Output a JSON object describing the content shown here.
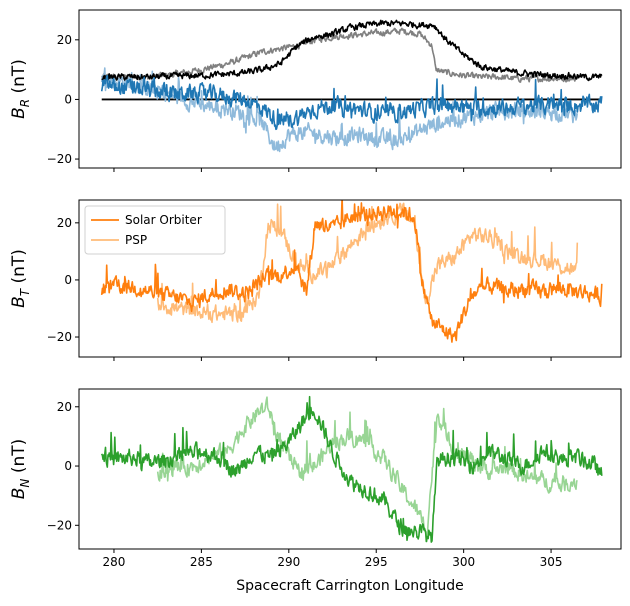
{
  "chart_data": [
    {
      "type": "line",
      "panel": "top",
      "ylabel_main": "B",
      "ylabel_sub": "R",
      "ylabel_unit": "(nT)",
      "xlim": [
        278,
        309
      ],
      "ylim": [
        -23,
        30
      ],
      "xticks": [
        280,
        285,
        290,
        295,
        300,
        305
      ],
      "yticks": [
        -20,
        0,
        20
      ],
      "ytick_labels": [
        "−20",
        "0",
        "20"
      ],
      "zero_line": {
        "x": [
          279.3,
          307.9
        ],
        "y": 0,
        "color": "#000000"
      },
      "series": [
        {
          "role": "psp_magnitude",
          "color": "#808080",
          "x": [
            279.3,
            280.5,
            282,
            283.5,
            285,
            286.5,
            287.5,
            288.5,
            289.5,
            290.5,
            291.5,
            292.5,
            293.5,
            294.5,
            295.5,
            296.5,
            297.5,
            298.2,
            298.4,
            299,
            300,
            301,
            302,
            303,
            304,
            305,
            306,
            306.5
          ],
          "y": [
            7.5,
            7.5,
            7.5,
            8.5,
            10,
            12,
            14,
            16,
            17,
            18,
            20,
            21,
            21.5,
            22,
            22.5,
            23,
            22,
            18,
            10,
            9,
            8,
            7.5,
            7.5,
            7,
            7,
            7,
            7,
            7
          ]
        },
        {
          "role": "psp_radial",
          "color": "#8fbadb",
          "x": [
            279.3,
            280.5,
            282,
            283.5,
            285,
            286.5,
            287.5,
            288.5,
            289.2,
            290,
            291,
            292,
            293,
            294,
            295,
            296,
            297,
            298,
            299,
            300,
            301,
            302,
            303,
            304,
            305,
            306,
            306.5
          ],
          "y": [
            7,
            6,
            4,
            1,
            -2,
            -3,
            -5,
            -8,
            -16,
            -12,
            -11,
            -12,
            -13,
            -12,
            -13,
            -14,
            -12,
            -9,
            -7,
            -6,
            -5,
            -4,
            -4,
            -4,
            -4,
            -5,
            -6
          ]
        },
        {
          "role": "solo_magnitude",
          "color": "#000000",
          "x": [
            279.3,
            280.5,
            282,
            283.5,
            285,
            286.5,
            287.5,
            288.5,
            289.5,
            290.5,
            291.5,
            292.5,
            293.5,
            294.5,
            295.5,
            296.5,
            297.5,
            298.3,
            299,
            300,
            301,
            302,
            303,
            304,
            305,
            306,
            307,
            307.9
          ],
          "y": [
            7.5,
            7.5,
            7.5,
            7.8,
            8,
            8.5,
            9,
            10,
            12,
            18,
            21,
            22,
            24,
            25,
            25.5,
            25.5,
            25,
            25,
            20,
            15,
            11,
            10,
            9,
            8.5,
            8,
            8,
            7.5,
            7.5
          ]
        },
        {
          "role": "solo_radial",
          "color": "#1f77b4",
          "x": [
            279.3,
            280.5,
            282,
            283.5,
            285,
            286.5,
            287.5,
            288.5,
            289.5,
            290.5,
            291.5,
            292.5,
            293.5,
            294.5,
            295.5,
            296.5,
            297.5,
            298.5,
            299.5,
            300.5,
            301.5,
            302.5,
            303.5,
            304.5,
            305.5,
            306.5,
            307.5,
            307.9
          ],
          "y": [
            5,
            4,
            3,
            2,
            2,
            1,
            0,
            -3,
            -8,
            -6,
            -3,
            -2,
            -3,
            -4,
            -5,
            -4,
            -3,
            -2,
            -2,
            -3,
            -3,
            -3,
            -2,
            -2,
            -2,
            -2,
            -2,
            -1
          ]
        }
      ]
    },
    {
      "type": "line",
      "panel": "middle",
      "ylabel_main": "B",
      "ylabel_sub": "T",
      "ylabel_unit": "(nT)",
      "xlim": [
        278,
        309
      ],
      "ylim": [
        -27,
        28
      ],
      "xticks": [
        280,
        285,
        290,
        295,
        300,
        305
      ],
      "yticks": [
        -20,
        0,
        20
      ],
      "ytick_labels": [
        "−20",
        "0",
        "20"
      ],
      "legend": {
        "placement": "top-left",
        "entries": [
          {
            "label": "Solar Orbiter",
            "color": "#ff7f0e"
          },
          {
            "label": "PSP",
            "color": "#ffbb78"
          }
        ]
      },
      "series": [
        {
          "role": "psp",
          "color": "#ffbb78",
          "x": [
            282.5,
            283.5,
            284.5,
            285.5,
            286.5,
            287.5,
            288.3,
            288.8,
            289.5,
            290.5,
            291.5,
            292.5,
            293.5,
            294.5,
            295.5,
            296.5,
            297.2,
            297.8,
            298.5,
            299.5,
            300.5,
            301.5,
            302.5,
            303.5,
            304.5,
            305.5,
            306.5
          ],
          "y": [
            -8,
            -10,
            -11,
            -12,
            -12,
            -11,
            -5,
            19,
            18,
            5,
            2,
            5,
            12,
            18,
            22,
            24,
            20,
            -8,
            5,
            8,
            16,
            15,
            10,
            8,
            7,
            5,
            3
          ]
        },
        {
          "role": "solo",
          "color": "#ff7f0e",
          "x": [
            279.3,
            280.5,
            281.5,
            282.5,
            283.5,
            284.5,
            285.5,
            286.5,
            287.5,
            288.5,
            289.5,
            290.5,
            291,
            291.5,
            292.5,
            293.5,
            294.5,
            295.5,
            296.5,
            297.2,
            297.6,
            298.2,
            299,
            299.5,
            300,
            300.5,
            301.5,
            302.5,
            303.5,
            304.5,
            305.5,
            306.5,
            307.5,
            307.9
          ],
          "y": [
            -3,
            -2,
            -3,
            -5,
            -6,
            -8,
            -5,
            -3,
            -5,
            0,
            2,
            5,
            -5,
            20,
            18,
            22,
            23,
            24,
            24,
            22,
            0,
            -15,
            -18,
            -20,
            -12,
            -5,
            -2,
            -4,
            -3,
            -4,
            -3,
            -4,
            -5,
            -6
          ]
        }
      ]
    },
    {
      "type": "line",
      "panel": "bottom",
      "ylabel_main": "B",
      "ylabel_sub": "N",
      "ylabel_unit": "(nT)",
      "xlabel": "Spacecraft Carrington Longitude",
      "xlim": [
        278,
        309
      ],
      "ylim": [
        -28,
        26
      ],
      "xticks": [
        280,
        285,
        290,
        295,
        300,
        305
      ],
      "xtick_labels": [
        "280",
        "285",
        "290",
        "295",
        "300",
        "305"
      ],
      "yticks": [
        -20,
        0,
        20
      ],
      "ytick_labels": [
        "−20",
        "0",
        "20"
      ],
      "series": [
        {
          "role": "psp",
          "color": "#98d594",
          "x": [
            282.5,
            283.5,
            284.5,
            285.5,
            286.5,
            287.3,
            288.2,
            288.8,
            289.5,
            290.5,
            291.5,
            292.5,
            293.5,
            294.5,
            295.5,
            296.5,
            297.3,
            297.9,
            298.5,
            299.5,
            300.5,
            301.5,
            302.5,
            303.5,
            304.5,
            305.5,
            306.5
          ],
          "y": [
            -3,
            -1,
            0,
            3,
            5,
            12,
            18,
            20,
            8,
            -2,
            0,
            8,
            10,
            8,
            2,
            -8,
            -15,
            -22,
            18,
            5,
            2,
            -2,
            0,
            -4,
            -5,
            -6,
            -5
          ]
        },
        {
          "role": "solo",
          "color": "#2ca02c",
          "x": [
            279.3,
            280,
            281,
            282,
            283,
            284,
            285,
            286,
            287,
            288,
            289,
            290,
            290.8,
            291.4,
            291.8,
            292.5,
            293.5,
            294.5,
            295.5,
            296.3,
            297,
            297.5,
            298.2,
            298.5,
            299,
            299.5,
            300.5,
            301.5,
            302.5,
            303.5,
            304.5,
            305.5,
            306.5,
            307.5,
            307.9
          ],
          "y": [
            4,
            2,
            3,
            1,
            2,
            4,
            5,
            3,
            -2,
            5,
            3,
            8,
            15,
            20,
            15,
            5,
            -5,
            -8,
            -12,
            -20,
            -22,
            -22,
            -24,
            2,
            3,
            3,
            0,
            5,
            2,
            0,
            5,
            2,
            3,
            0,
            -3
          ]
        }
      ]
    }
  ]
}
